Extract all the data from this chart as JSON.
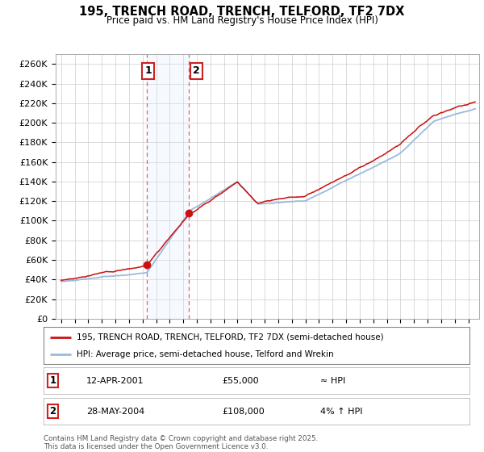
{
  "title": "195, TRENCH ROAD, TRENCH, TELFORD, TF2 7DX",
  "subtitle": "Price paid vs. HM Land Registry's House Price Index (HPI)",
  "ylim": [
    0,
    270000
  ],
  "yticks": [
    0,
    20000,
    40000,
    60000,
    80000,
    100000,
    120000,
    140000,
    160000,
    180000,
    200000,
    220000,
    240000,
    260000
  ],
  "ytick_labels": [
    "£0",
    "£20K",
    "£40K",
    "£60K",
    "£80K",
    "£100K",
    "£120K",
    "£140K",
    "£160K",
    "£180K",
    "£200K",
    "£220K",
    "£240K",
    "£260K"
  ],
  "background_color": "#ffffff",
  "plot_bg_color": "#ffffff",
  "grid_color": "#cccccc",
  "line1_color": "#cc1111",
  "line2_color": "#99bbdd",
  "sale1_date": 2001.3,
  "sale1_price": 55000,
  "sale2_date": 2004.42,
  "sale2_price": 108000,
  "shade_color": "#ddeeff",
  "vline_color": "#dd6666",
  "legend1_label": "195, TRENCH ROAD, TRENCH, TELFORD, TF2 7DX (semi-detached house)",
  "legend2_label": "HPI: Average price, semi-detached house, Telford and Wrekin",
  "footer": "Contains HM Land Registry data © Crown copyright and database right 2025.\nThis data is licensed under the Open Government Licence v3.0."
}
